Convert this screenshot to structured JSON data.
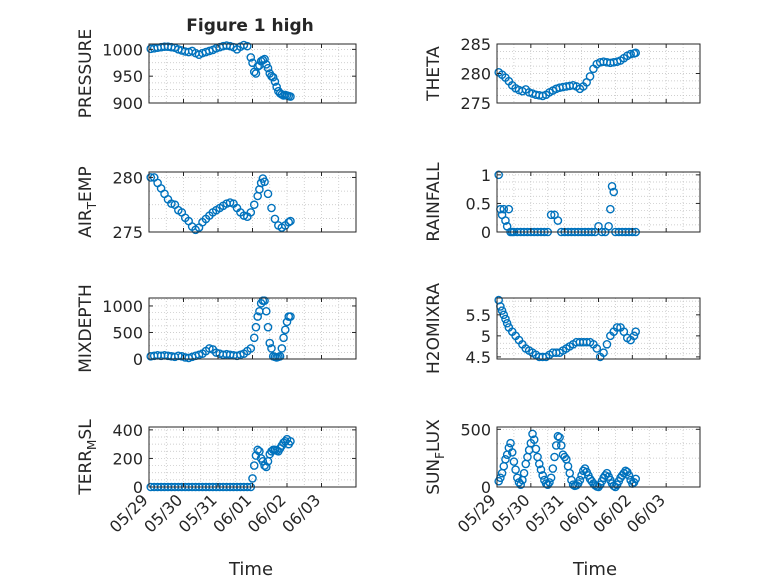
{
  "figure": {
    "title": "Figure 1 high"
  },
  "x_axis": {
    "label": "Time",
    "tick_labels": [
      "05/29",
      "05/30",
      "05/31",
      "06/01",
      "06/02",
      "06/03"
    ]
  },
  "colors": {
    "marker": "#0072BD",
    "grid": "#bfbfbf",
    "axis": "#262626"
  },
  "chart_data": [
    {
      "type": "scatter",
      "ylabel": "PRESSURE",
      "ylim": [
        900,
        1010
      ],
      "yticks": [
        "900",
        "950",
        "1000"
      ],
      "yticks_values": [
        900,
        950,
        1000
      ],
      "xlim": [
        0,
        6
      ],
      "grid": true,
      "x": [
        0.05,
        0.15,
        0.25,
        0.35,
        0.45,
        0.55,
        0.65,
        0.75,
        0.85,
        0.95,
        1.05,
        1.15,
        1.25,
        1.35,
        1.45,
        1.55,
        1.65,
        1.75,
        1.85,
        1.95,
        2.05,
        2.15,
        2.25,
        2.35,
        2.45,
        2.55,
        2.65,
        2.75,
        2.85,
        2.95,
        3.0,
        3.05,
        3.1,
        3.15,
        3.2,
        3.25,
        3.3,
        3.35,
        3.4,
        3.45,
        3.5,
        3.55,
        3.6,
        3.65,
        3.7,
        3.75,
        3.8,
        3.85,
        3.9,
        3.95,
        4.0,
        4.05,
        4.1
      ],
      "y": [
        1001,
        1002,
        1003,
        1004,
        1005,
        1005,
        1004,
        1003,
        1000,
        998,
        996,
        995,
        997,
        993,
        990,
        993,
        995,
        997,
        999,
        1002,
        1004,
        1006,
        1007,
        1006,
        1004,
        1000,
        1005,
        1008,
        1006,
        985,
        975,
        958,
        955,
        968,
        970,
        978,
        980,
        982,
        972,
        965,
        955,
        950,
        948,
        940,
        930,
        922,
        918,
        916,
        914,
        915,
        914,
        913,
        912
      ]
    },
    {
      "type": "scatter",
      "ylabel": "THETA",
      "ylim": [
        275,
        285
      ],
      "yticks": [
        "275",
        "280",
        "285"
      ],
      "yticks_values": [
        275,
        280,
        285
      ],
      "xlim": [
        0,
        6
      ],
      "grid": true,
      "x": [
        0.05,
        0.15,
        0.25,
        0.35,
        0.45,
        0.55,
        0.65,
        0.75,
        0.85,
        0.95,
        1.05,
        1.15,
        1.25,
        1.35,
        1.45,
        1.55,
        1.65,
        1.75,
        1.85,
        1.95,
        2.05,
        2.15,
        2.25,
        2.35,
        2.45,
        2.55,
        2.65,
        2.75,
        2.85,
        2.95,
        3.05,
        3.15,
        3.25,
        3.35,
        3.45,
        3.55,
        3.65,
        3.75,
        3.85,
        3.95,
        4.05,
        4.1
      ],
      "y": [
        280.2,
        279.8,
        279.3,
        278.7,
        278.0,
        277.5,
        277.2,
        277.0,
        277.3,
        276.8,
        276.6,
        276.4,
        276.3,
        276.2,
        276.4,
        276.8,
        277.1,
        277.4,
        277.6,
        277.7,
        277.8,
        277.9,
        278.0,
        277.8,
        277.4,
        277.8,
        278.5,
        279.5,
        280.8,
        281.6,
        281.9,
        282.0,
        281.9,
        281.8,
        281.9,
        282.0,
        282.2,
        282.6,
        283.0,
        283.3,
        283.4,
        283.5
      ]
    },
    {
      "type": "scatter",
      "ylabel": "AIR_TEMP",
      "ylim": [
        275,
        280.5
      ],
      "yticks": [
        "275",
        "280"
      ],
      "yticks_values": [
        275,
        280
      ],
      "xlim": [
        0,
        6
      ],
      "grid": true,
      "x": [
        0.05,
        0.15,
        0.25,
        0.35,
        0.45,
        0.55,
        0.65,
        0.75,
        0.85,
        0.95,
        1.05,
        1.15,
        1.25,
        1.35,
        1.45,
        1.55,
        1.65,
        1.75,
        1.85,
        1.95,
        2.05,
        2.15,
        2.25,
        2.35,
        2.45,
        2.55,
        2.65,
        2.75,
        2.85,
        2.95,
        3.05,
        3.15,
        3.2,
        3.25,
        3.3,
        3.35,
        3.45,
        3.55,
        3.65,
        3.75,
        3.85,
        3.95,
        4.05,
        4.1
      ],
      "y": [
        280,
        280,
        279.5,
        279,
        278.5,
        278,
        277.6,
        277.5,
        277,
        276.8,
        276.3,
        276,
        275.5,
        275.2,
        275.4,
        275.9,
        276.2,
        276.5,
        276.8,
        277,
        277.2,
        277.4,
        277.6,
        277.7,
        277.6,
        277.2,
        276.8,
        276.5,
        276.4,
        276.8,
        277.5,
        278.3,
        278.9,
        279.5,
        279.9,
        279.6,
        278.5,
        277.2,
        276.2,
        275.6,
        275.4,
        275.6,
        275.9,
        276.0
      ]
    },
    {
      "type": "scatter",
      "ylabel": "RAINFALL",
      "ylim": [
        0,
        1.05
      ],
      "yticks": [
        "0",
        "0.5",
        "1"
      ],
      "yticks_values": [
        0,
        0.5,
        1
      ],
      "xlim": [
        0,
        6
      ],
      "grid": true,
      "x": [
        0.05,
        0.1,
        0.15,
        0.2,
        0.25,
        0.3,
        0.35,
        0.4,
        0.45,
        0.5,
        0.6,
        0.7,
        0.8,
        0.9,
        1.0,
        1.1,
        1.2,
        1.3,
        1.4,
        1.5,
        1.6,
        1.7,
        1.8,
        1.9,
        2.0,
        2.1,
        2.2,
        2.3,
        2.4,
        2.5,
        2.6,
        2.7,
        2.8,
        2.9,
        3.0,
        3.1,
        3.2,
        3.3,
        3.35,
        3.4,
        3.45,
        3.5,
        3.6,
        3.7,
        3.8,
        3.9,
        4.0,
        4.1
      ],
      "y": [
        1.0,
        0.4,
        0.3,
        0.4,
        0.2,
        0.1,
        0.4,
        0.0,
        0.0,
        0.0,
        0.0,
        0.0,
        0.0,
        0.0,
        0.0,
        0.0,
        0.0,
        0.0,
        0.0,
        0.0,
        0.3,
        0.3,
        0.2,
        0.0,
        0.0,
        0.0,
        0.0,
        0.0,
        0.0,
        0.0,
        0.0,
        0.0,
        0.0,
        0.0,
        0.1,
        0.0,
        0.0,
        0.1,
        0.4,
        0.8,
        0.7,
        0.0,
        0.0,
        0.0,
        0.0,
        0.0,
        0.0,
        0.0
      ]
    },
    {
      "type": "scatter",
      "ylabel": "MIXDEPTH",
      "ylim": [
        0,
        1150
      ],
      "yticks": [
        "0",
        "500",
        "1000"
      ],
      "yticks_values": [
        0,
        500,
        1000
      ],
      "xlim": [
        0,
        6
      ],
      "grid": true,
      "x": [
        0.05,
        0.15,
        0.25,
        0.35,
        0.45,
        0.55,
        0.65,
        0.75,
        0.85,
        0.95,
        1.05,
        1.15,
        1.25,
        1.35,
        1.45,
        1.55,
        1.65,
        1.75,
        1.85,
        1.95,
        2.05,
        2.15,
        2.25,
        2.35,
        2.45,
        2.55,
        2.65,
        2.75,
        2.85,
        2.95,
        3.05,
        3.1,
        3.15,
        3.2,
        3.25,
        3.3,
        3.35,
        3.4,
        3.45,
        3.5,
        3.55,
        3.6,
        3.65,
        3.7,
        3.75,
        3.8,
        3.85,
        3.9,
        3.95,
        4.0,
        4.05,
        4.1
      ],
      "y": [
        50,
        60,
        70,
        60,
        70,
        60,
        50,
        40,
        60,
        50,
        30,
        20,
        40,
        60,
        80,
        100,
        150,
        200,
        180,
        120,
        100,
        80,
        90,
        80,
        70,
        60,
        80,
        100,
        150,
        200,
        400,
        600,
        800,
        900,
        1050,
        1100,
        1100,
        900,
        600,
        300,
        200,
        50,
        40,
        30,
        40,
        50,
        200,
        400,
        550,
        700,
        800,
        800
      ]
    },
    {
      "type": "scatter",
      "ylabel": "H2OMIXRA",
      "ylim": [
        4.45,
        5.9
      ],
      "yticks": [
        "4.5",
        "5",
        "5.5"
      ],
      "yticks_values": [
        4.5,
        5,
        5.5
      ],
      "xlim": [
        0,
        6
      ],
      "grid": true,
      "x": [
        0.05,
        0.1,
        0.15,
        0.2,
        0.25,
        0.3,
        0.35,
        0.45,
        0.55,
        0.65,
        0.75,
        0.85,
        0.95,
        1.05,
        1.15,
        1.25,
        1.35,
        1.45,
        1.55,
        1.65,
        1.75,
        1.85,
        1.95,
        2.05,
        2.15,
        2.25,
        2.35,
        2.45,
        2.55,
        2.65,
        2.75,
        2.85,
        2.95,
        3.05,
        3.15,
        3.25,
        3.35,
        3.45,
        3.55,
        3.65,
        3.75,
        3.85,
        3.95,
        4.05,
        4.1
      ],
      "y": [
        5.85,
        5.7,
        5.6,
        5.5,
        5.4,
        5.3,
        5.2,
        5.1,
        5.0,
        4.9,
        4.8,
        4.7,
        4.65,
        4.6,
        4.55,
        4.5,
        4.5,
        4.5,
        4.55,
        4.6,
        4.6,
        4.6,
        4.65,
        4.7,
        4.75,
        4.8,
        4.85,
        4.85,
        4.85,
        4.85,
        4.85,
        4.8,
        4.7,
        4.5,
        4.6,
        4.8,
        5.0,
        5.1,
        5.2,
        5.2,
        5.1,
        4.95,
        4.9,
        5.0,
        5.1
      ]
    },
    {
      "type": "scatter",
      "ylabel": "TERR_MSL",
      "ylim": [
        0,
        420
      ],
      "yticks": [
        "0",
        "200",
        "400"
      ],
      "yticks_values": [
        0,
        200,
        400
      ],
      "xlim": [
        0,
        6
      ],
      "grid": true,
      "x": [
        0.05,
        0.15,
        0.25,
        0.35,
        0.45,
        0.55,
        0.65,
        0.75,
        0.85,
        0.95,
        1.05,
        1.15,
        1.25,
        1.35,
        1.45,
        1.55,
        1.65,
        1.75,
        1.85,
        1.95,
        2.05,
        2.15,
        2.25,
        2.35,
        2.45,
        2.55,
        2.65,
        2.75,
        2.85,
        2.95,
        3.0,
        3.05,
        3.1,
        3.15,
        3.2,
        3.25,
        3.3,
        3.35,
        3.4,
        3.45,
        3.5,
        3.55,
        3.6,
        3.65,
        3.7,
        3.75,
        3.8,
        3.85,
        3.9,
        3.95,
        4.0,
        4.05,
        4.1
      ],
      "y": [
        0,
        0,
        0,
        0,
        0,
        0,
        0,
        0,
        0,
        0,
        0,
        0,
        0,
        0,
        0,
        0,
        0,
        0,
        0,
        0,
        0,
        0,
        0,
        0,
        0,
        0,
        0,
        0,
        0,
        0,
        60,
        150,
        220,
        260,
        250,
        200,
        180,
        150,
        140,
        180,
        230,
        250,
        260,
        260,
        255,
        250,
        270,
        290,
        310,
        320,
        335,
        300,
        320
      ]
    },
    {
      "type": "scatter",
      "ylabel": "SUN_FLUX",
      "ylim": [
        0,
        520
      ],
      "yticks": [
        "0",
        "500"
      ],
      "yticks_values": [
        0,
        500
      ],
      "xlim": [
        0,
        6
      ],
      "grid": true,
      "x": [
        0.05,
        0.1,
        0.15,
        0.2,
        0.25,
        0.3,
        0.35,
        0.4,
        0.45,
        0.5,
        0.55,
        0.6,
        0.65,
        0.7,
        0.75,
        0.8,
        0.85,
        0.9,
        0.95,
        1.0,
        1.05,
        1.1,
        1.15,
        1.2,
        1.25,
        1.3,
        1.35,
        1.4,
        1.45,
        1.5,
        1.55,
        1.6,
        1.65,
        1.7,
        1.75,
        1.8,
        1.85,
        1.9,
        1.95,
        2.0,
        2.05,
        2.1,
        2.15,
        2.2,
        2.25,
        2.3,
        2.35,
        2.4,
        2.45,
        2.5,
        2.55,
        2.6,
        2.65,
        2.7,
        2.75,
        2.8,
        2.85,
        2.9,
        2.95,
        3.0,
        3.05,
        3.1,
        3.15,
        3.2,
        3.25,
        3.3,
        3.35,
        3.4,
        3.45,
        3.5,
        3.55,
        3.6,
        3.65,
        3.7,
        3.75,
        3.8,
        3.85,
        3.9,
        3.95,
        4.0,
        4.05,
        4.1
      ],
      "y": [
        50,
        80,
        120,
        180,
        240,
        280,
        340,
        380,
        300,
        220,
        150,
        80,
        40,
        20,
        60,
        120,
        200,
        260,
        320,
        380,
        460,
        410,
        330,
        260,
        200,
        150,
        100,
        60,
        30,
        20,
        40,
        80,
        160,
        260,
        360,
        440,
        430,
        360,
        280,
        260,
        240,
        180,
        120,
        60,
        20,
        10,
        15,
        30,
        60,
        100,
        140,
        160,
        130,
        100,
        70,
        50,
        30,
        15,
        5,
        0,
        20,
        50,
        80,
        100,
        120,
        90,
        60,
        30,
        10,
        0,
        20,
        50,
        80,
        100,
        120,
        140,
        130,
        100,
        60,
        30,
        40,
        70
      ]
    }
  ]
}
